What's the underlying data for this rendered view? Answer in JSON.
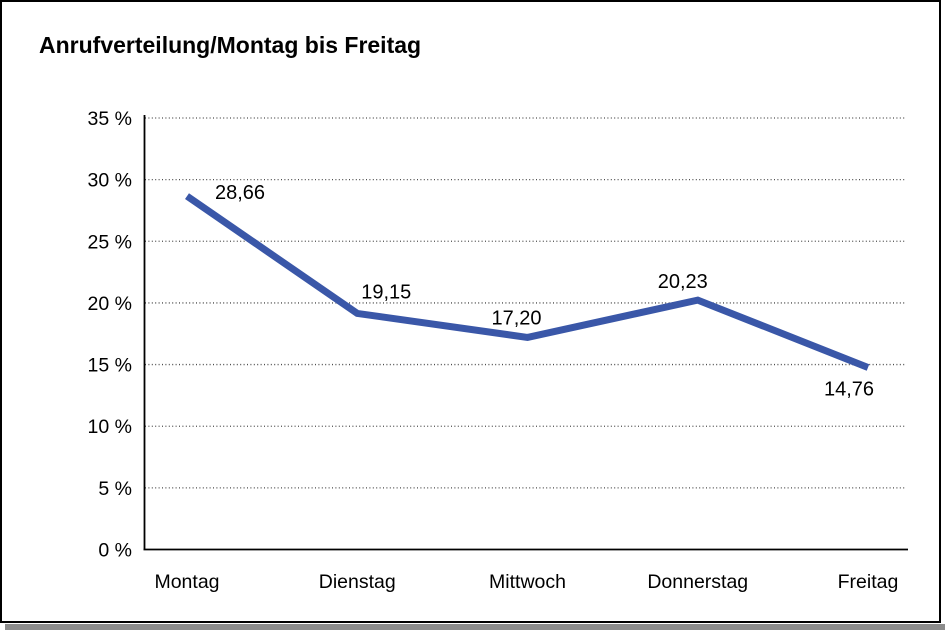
{
  "chart_data": {
    "type": "line",
    "title": "Anrufverteilung/Montag bis Freitag",
    "categories": [
      "Montag",
      "Dienstag",
      "Mittwoch",
      "Donnerstag",
      "Freitag"
    ],
    "series": [
      {
        "name": "Anrufverteilung",
        "values": [
          28.66,
          19.15,
          17.2,
          20.23,
          14.76
        ],
        "value_labels": [
          "28,66",
          "19,15",
          "17,20",
          "20,23",
          "14,76"
        ]
      }
    ],
    "xlabel": "",
    "ylabel": "",
    "ylim": [
      0,
      35
    ],
    "ytick_step": 5,
    "ytick_labels": [
      "0 %",
      "5 %",
      "10 %",
      "15 %",
      "20 %",
      "25 %",
      "30 %",
      "35 %"
    ],
    "grid": "horizontal-dotted",
    "legend": "none",
    "colors": {
      "line": "#3a57a8",
      "text": "#000000",
      "grid": "#4d4d4d",
      "axis": "#000000",
      "background": "#ffffff",
      "frame_border": "#000000",
      "frame_shadow": "#8c8c8c"
    }
  }
}
